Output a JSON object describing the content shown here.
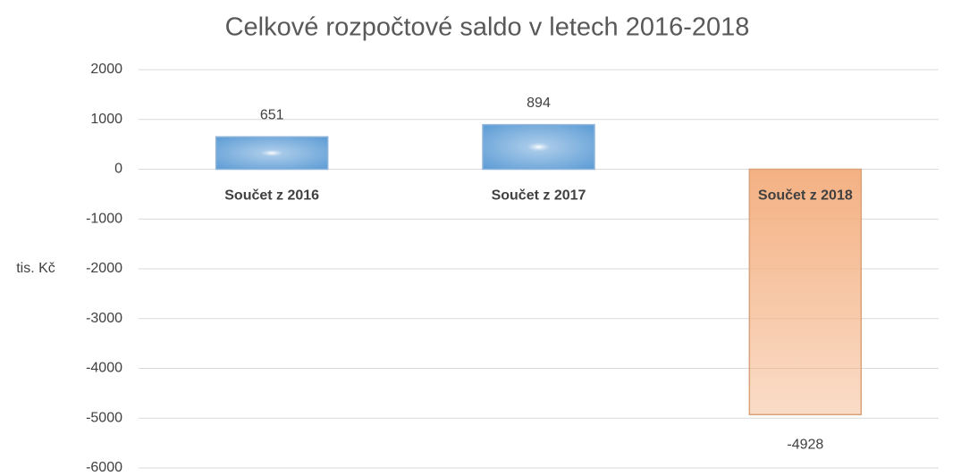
{
  "chart_data": {
    "type": "bar",
    "title": "Celkové rozpočtové saldo v letech 2016-2018",
    "y_label": "tis. Kč",
    "categories": [
      "Součet z 2016",
      "Součet z 2017",
      "Součet z 2018"
    ],
    "values": [
      651,
      894,
      -4928
    ],
    "colors": [
      "#5b9bd5",
      "#5b9bd5",
      "#f4b183"
    ],
    "ylim": [
      -6000,
      2000
    ],
    "yticks": [
      -6000,
      -5000,
      -4000,
      -3000,
      -2000,
      -1000,
      0,
      1000,
      2000
    ],
    "grid": true
  }
}
